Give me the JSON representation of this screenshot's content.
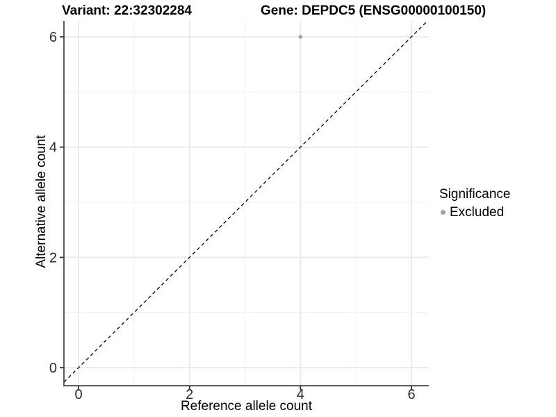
{
  "titles": {
    "variant": "Variant: 22:32302284",
    "gene": "Gene: DEPDC5 (ENSG00000100150)"
  },
  "chart_data": {
    "type": "scatter",
    "title": "Variant: 22:32302284 — Gene: DEPDC5 (ENSG00000100150)",
    "xlabel": "Reference allele count",
    "ylabel": "Alternative allele count",
    "xlim": [
      -0.26,
      6.31
    ],
    "ylim": [
      -0.33,
      6.29
    ],
    "x_major_ticks": [
      0,
      2,
      4,
      6
    ],
    "y_major_ticks": [
      0,
      2,
      4,
      6
    ],
    "x_minor_gridlines": [
      1,
      3,
      5
    ],
    "y_minor_gridlines": [
      1,
      3,
      5
    ],
    "grid": "major and minor gridlines, light grey on white",
    "series": [
      {
        "name": "Excluded",
        "color": "#a3a3a3",
        "points": [
          {
            "x": 4,
            "y": 6
          }
        ]
      }
    ],
    "reference_line": {
      "type": "identity",
      "slope": 1,
      "intercept": 0,
      "style": "dashed",
      "color": "#000000"
    },
    "legend": {
      "position": "right",
      "title": "Significance",
      "entries": [
        {
          "label": "Excluded",
          "marker_color": "#a3a3a3"
        }
      ]
    }
  },
  "colors": {
    "background": "#ffffff",
    "axis_line": "#4a4a4a",
    "tick_mark": "#333333",
    "tick_label": "#2b2b2b",
    "grid_major": "#e9e9e9",
    "grid_minor": "#f3f3f3",
    "point": "#a3a3a3",
    "dashed_line": "#000000"
  }
}
